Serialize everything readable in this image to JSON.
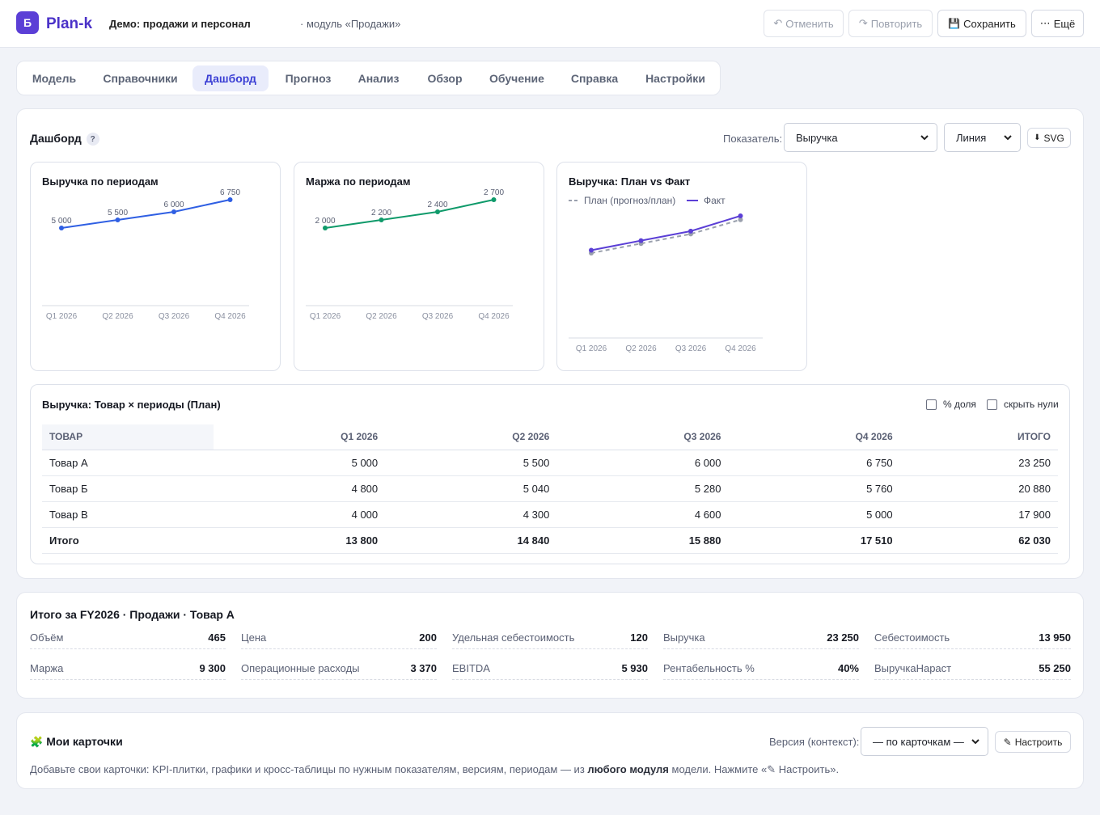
{
  "app": {
    "logo_glyph": "Б",
    "name": "Plan-k",
    "project": "Демо: продажи и персонал",
    "module": "· модуль «Продажи»"
  },
  "toolbar": {
    "undo": {
      "icon": "undo-icon",
      "glyph": "↶",
      "label": "Отменить"
    },
    "redo": {
      "icon": "redo-icon",
      "glyph": "↷",
      "label": "Повторить"
    },
    "save": {
      "icon": "floppy-disk-icon",
      "glyph": "💾",
      "label": "Сохранить"
    },
    "more": {
      "icon": "more-icon",
      "glyph": "⋯",
      "label": "Ещё"
    }
  },
  "tabs": [
    "Модель",
    "Справочники",
    "Дашборд",
    "Прогноз",
    "Анализ",
    "Обзор",
    "Обучение",
    "Справка",
    "Настройки"
  ],
  "active_tab": "Дашборд",
  "dashboard": {
    "title": "Дашборд",
    "help_glyph": "?",
    "indicator_label": "Показатель:",
    "indicator_value": "Выручка",
    "chart_type_value": "Линия",
    "export_glyph": "⬇",
    "export_label": "SVG"
  },
  "charts": [
    {
      "title": "Выручка по периодам"
    },
    {
      "title": "Маржа по периодам"
    },
    {
      "title": "Выручка: План vs Факт",
      "legend_plan": "План (прогноз/план)",
      "legend_fact": "Факт"
    }
  ],
  "chart_data": [
    {
      "type": "line",
      "title": "Выручка по периодам",
      "categories": [
        "Q1 2026",
        "Q2 2026",
        "Q3 2026",
        "Q4 2026"
      ],
      "values": [
        5000,
        5500,
        6000,
        6750
      ],
      "labels": [
        "5 000",
        "5 500",
        "6 000",
        "6 750"
      ],
      "ylim": [
        0,
        6750
      ],
      "color": "#2f5fe3"
    },
    {
      "type": "line",
      "title": "Маржа по периодам",
      "categories": [
        "Q1 2026",
        "Q2 2026",
        "Q3 2026",
        "Q4 2026"
      ],
      "values": [
        2000,
        2200,
        2400,
        2700
      ],
      "labels": [
        "2 000",
        "2 200",
        "2 400",
        "2 700"
      ],
      "ylim": [
        0,
        2700
      ],
      "color": "#0f9a6a"
    },
    {
      "type": "line",
      "title": "Выручка: План vs Факт",
      "categories": [
        "Q1 2026",
        "Q2 2026",
        "Q3 2026",
        "Q4 2026"
      ],
      "series": [
        {
          "name": "План (прогноз/план)",
          "values": [
            5000,
            5500,
            6000,
            6750
          ],
          "color": "#9aa0ad",
          "dashed": true
        },
        {
          "name": "Факт",
          "values": [
            5150,
            5650,
            6150,
            6950
          ],
          "color": "#5b3fd6",
          "dashed": false
        }
      ],
      "ylim": [
        0,
        6950
      ],
      "legend": "top-left"
    }
  ],
  "table": {
    "title": "Выручка: Товар × периоды (План)",
    "opt_share": "% доля",
    "opt_hide_zero": "скрыть нули",
    "headers": [
      "ТОВАР",
      "Q1 2026",
      "Q2 2026",
      "Q3 2026",
      "Q4 2026",
      "ИТОГО"
    ],
    "rows": [
      [
        "Товар А",
        "5 000",
        "5 500",
        "6 000",
        "6 750",
        "23 250"
      ],
      [
        "Товар Б",
        "4 800",
        "5 040",
        "5 280",
        "5 760",
        "20 880"
      ],
      [
        "Товар В",
        "4 000",
        "4 300",
        "4 600",
        "5 000",
        "17 900"
      ]
    ],
    "total": [
      "Итого",
      "13 800",
      "14 840",
      "15 880",
      "17 510",
      "62 030"
    ]
  },
  "summary": {
    "title": "Итого за FY2026 · Продажи · Товар А",
    "items": [
      {
        "k": "Объём",
        "v": "465"
      },
      {
        "k": "Цена",
        "v": "200"
      },
      {
        "k": "Удельная себестоимость",
        "v": "120"
      },
      {
        "k": "Выручка",
        "v": "23 250"
      },
      {
        "k": "Себестоимость",
        "v": "13 950"
      },
      {
        "k": "Маржа",
        "v": "9 300"
      },
      {
        "k": "Операционные расходы",
        "v": "3 370"
      },
      {
        "k": "EBITDA",
        "v": "5 930"
      },
      {
        "k": "Рентабельность %",
        "v": "40%"
      },
      {
        "k": "ВыручкаНараст",
        "v": "55 250"
      }
    ]
  },
  "mycards": {
    "icon": "puzzle-icon",
    "glyph": "🧩",
    "title": "Мои карточки",
    "version_label": "Версия (контекст):",
    "version_value": "— по карточкам —",
    "configure_glyph": "✎",
    "configure_label": "Настроить",
    "hint_pre": "Добавьте свои карточки: KPI-плитки, графики и кросс-таблицы по нужным показателям, версиям, периодам — из ",
    "hint_bold": "любого модуля",
    "hint_post": " модели. Нажмите «✎ Настроить»."
  },
  "colors": {
    "accent": "#5b3fd6",
    "link": "#3b3fd4",
    "revenue": "#2f5fe3",
    "margin": "#0f9a6a"
  }
}
